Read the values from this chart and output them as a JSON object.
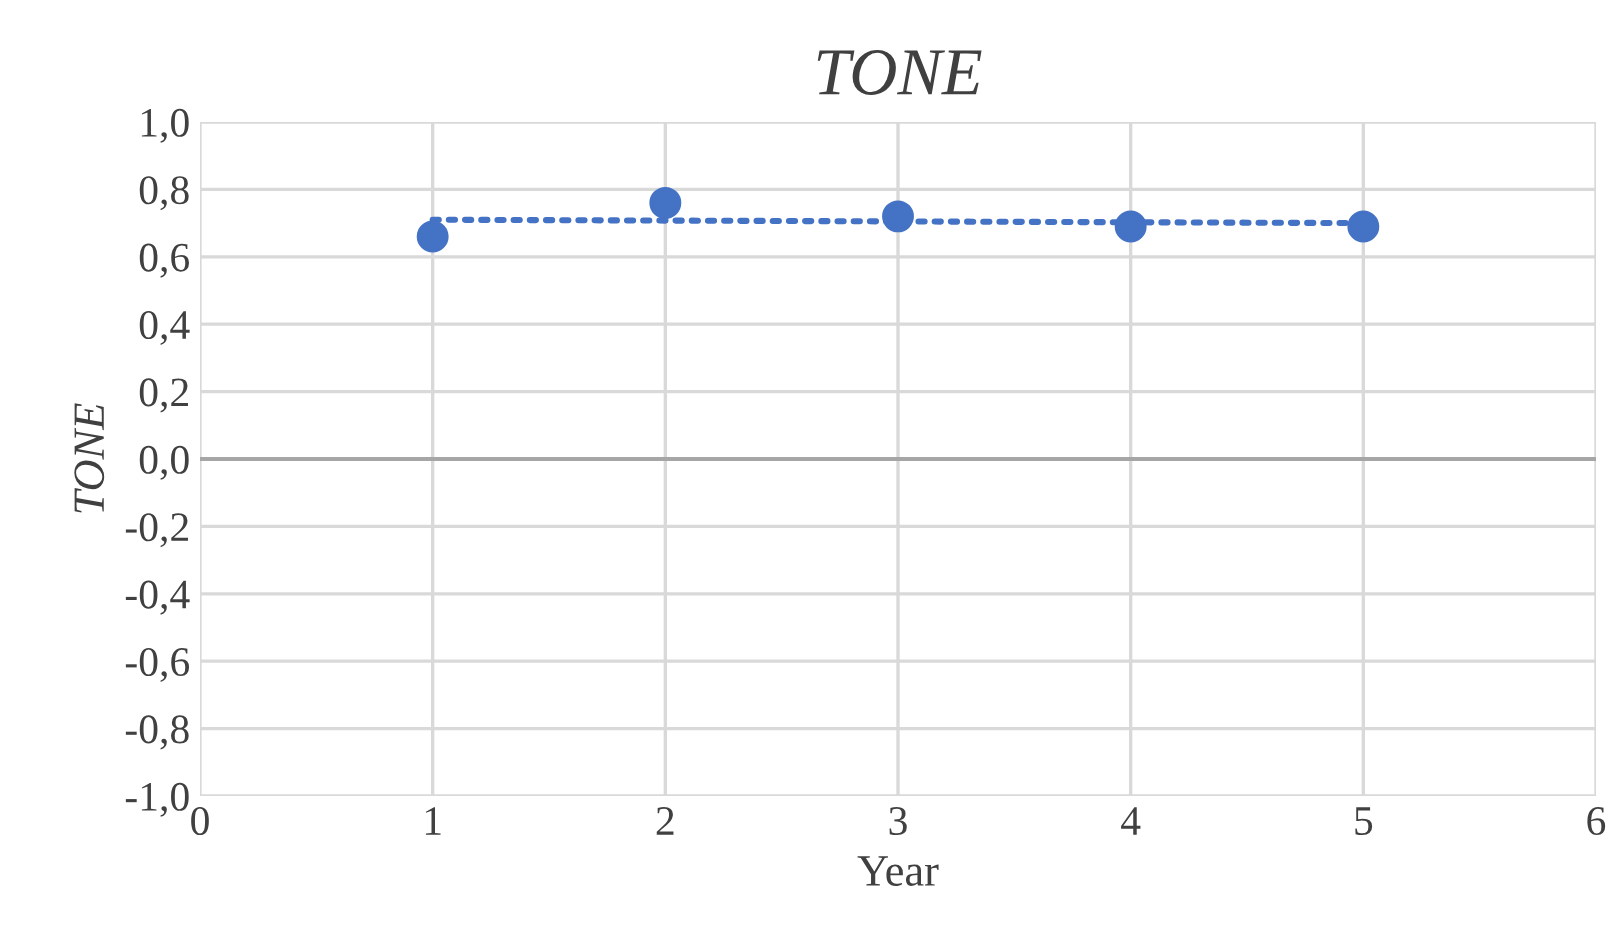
{
  "chart_data": {
    "type": "scatter",
    "title": "TONE",
    "xlabel": "Year",
    "ylabel": "TONE",
    "x": [
      1,
      2,
      3,
      4,
      5
    ],
    "series": [
      {
        "color": "#4472c4",
        "values": [
          0.66,
          0.76,
          0.72,
          0.69,
          0.69
        ],
        "marker": "circle"
      },
      {
        "type": "line",
        "color": "#4472c4",
        "x": [
          1,
          5
        ],
        "values": [
          0.71,
          0.7
        ],
        "line_style": "dotted",
        "marker": "none"
      }
    ],
    "xlim": [
      0,
      6
    ],
    "xticks": [
      0,
      1,
      2,
      3,
      4,
      5,
      6
    ],
    "ylim": [
      -1.0,
      1.0
    ],
    "yticks": [
      {
        "value": -1.0,
        "label": "-1,0"
      },
      {
        "value": -0.8,
        "label": "-0,8"
      },
      {
        "value": -0.6,
        "label": "-0,6"
      },
      {
        "value": -0.4,
        "label": "-0,4"
      },
      {
        "value": -0.2,
        "label": "-0,2"
      },
      {
        "value": 0.0,
        "label": "0,0"
      },
      {
        "value": 0.2,
        "label": "0,2"
      },
      {
        "value": 0.4,
        "label": "0,4"
      },
      {
        "value": 0.6,
        "label": "0,6"
      },
      {
        "value": 0.8,
        "label": "0,8"
      },
      {
        "value": 1.0,
        "label": "1,0"
      }
    ],
    "grid": true,
    "legend": false
  }
}
